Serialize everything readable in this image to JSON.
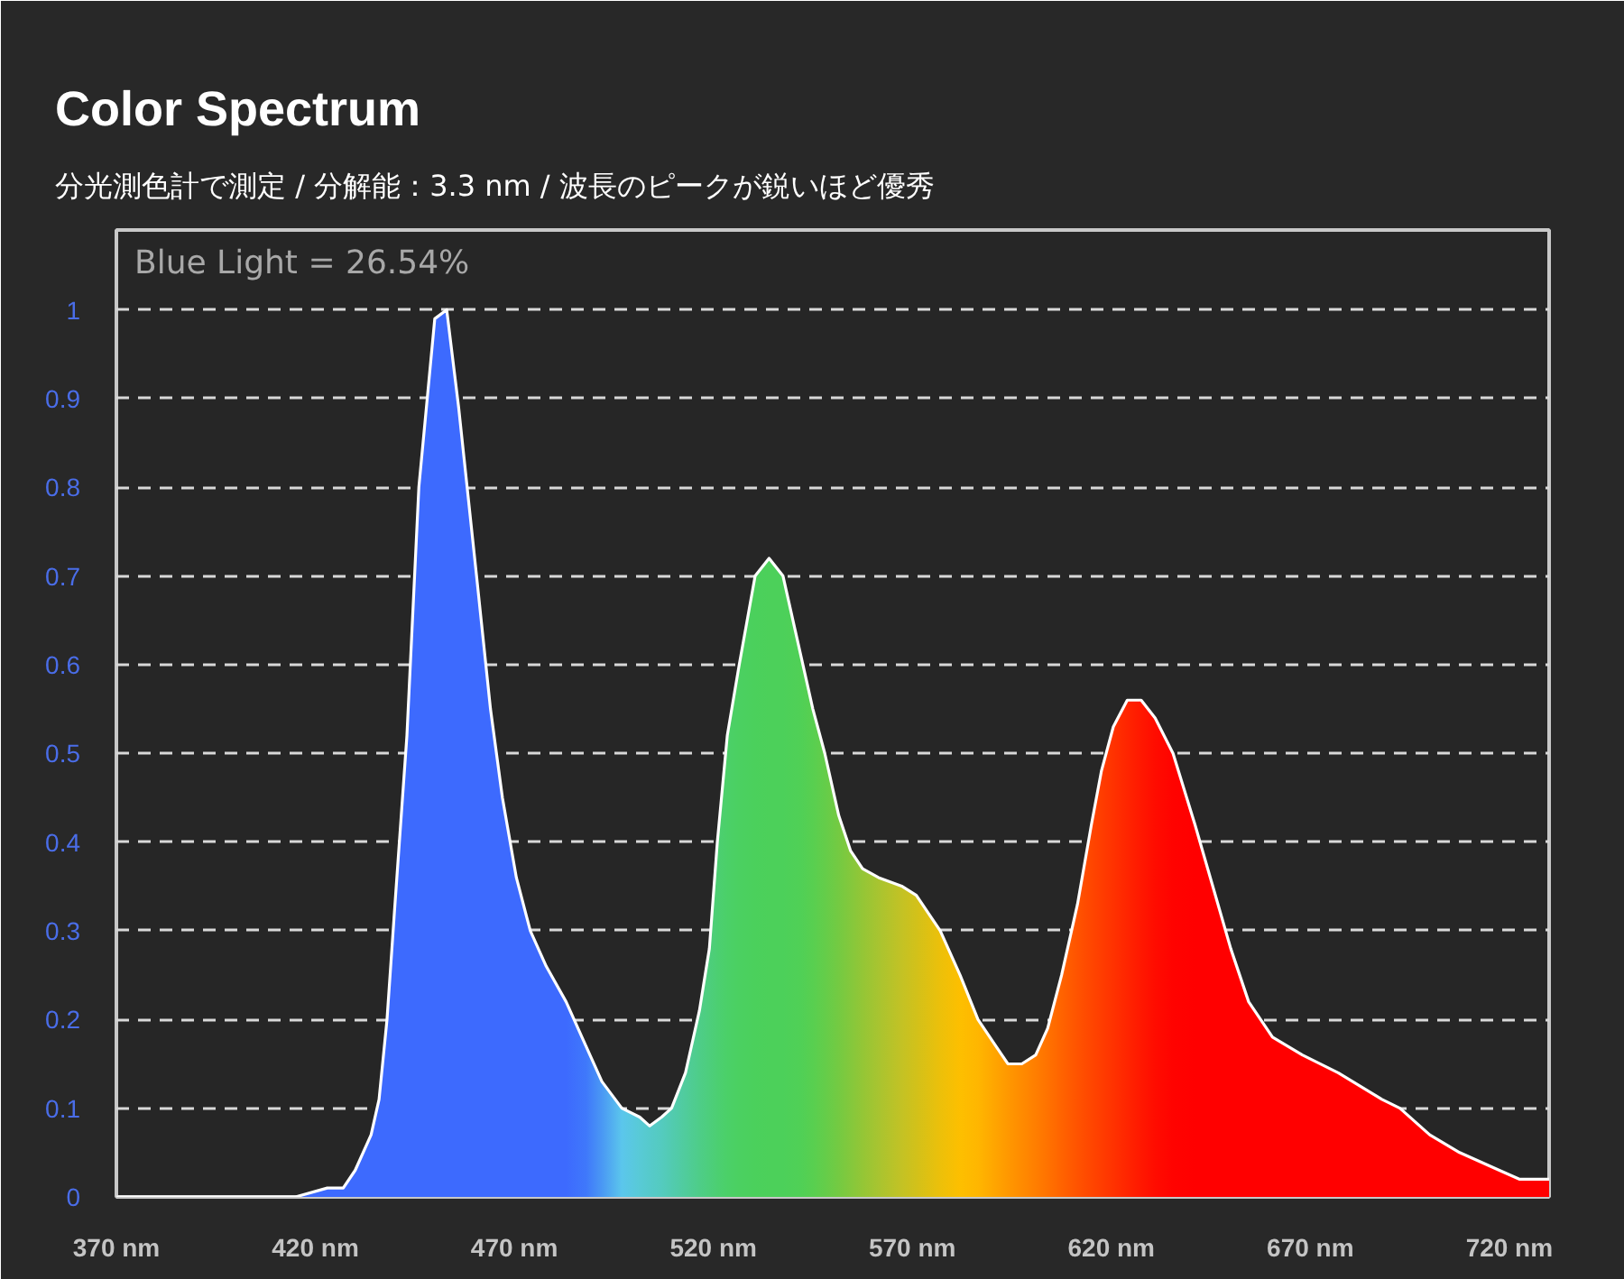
{
  "chart_data": {
    "type": "area",
    "title": "Color Spectrum",
    "subtitle": "分光測色計で測定 / 分解能：3.3 nm / 波長のピークが鋭いほど優秀",
    "annotations": [
      "Blue Light = 26.54%"
    ],
    "x": [
      370,
      400,
      415,
      423,
      427,
      430,
      434,
      436,
      438,
      440,
      443,
      446,
      450,
      453,
      456,
      460.5,
      464,
      467,
      470.5,
      474,
      478,
      483,
      488,
      492,
      497,
      501.5,
      504,
      507,
      509.5,
      513,
      516.5,
      519,
      521,
      523.5,
      526.5,
      530.5,
      534,
      537.5,
      542,
      545,
      548,
      551.5,
      554.5,
      557.5,
      561.5,
      567.5,
      571,
      577,
      582,
      586.5,
      591,
      594,
      597.5,
      601,
      604,
      607.5,
      611.5,
      615,
      617.5,
      620.5,
      624,
      627.5,
      631,
      635.5,
      641,
      645.5,
      650,
      654.5,
      660.5,
      668,
      677,
      688,
      692.5,
      700,
      707.5,
      717.5,
      722.5,
      730
    ],
    "series": [
      {
        "color": "#ffffff",
        "values": [
          0,
          0,
          0,
          0.01,
          0.01,
          0.03,
          0.07,
          0.11,
          0.2,
          0.33,
          0.52,
          0.8,
          0.99,
          1.0,
          0.89,
          0.7,
          0.55,
          0.45,
          0.36,
          0.3,
          0.26,
          0.22,
          0.17,
          0.13,
          0.1,
          0.09,
          0.08,
          0.09,
          0.1,
          0.14,
          0.21,
          0.28,
          0.4,
          0.52,
          0.6,
          0.7,
          0.72,
          0.7,
          0.61,
          0.55,
          0.5,
          0.43,
          0.39,
          0.37,
          0.36,
          0.35,
          0.34,
          0.3,
          0.25,
          0.2,
          0.17,
          0.15,
          0.15,
          0.16,
          0.19,
          0.25,
          0.33,
          0.42,
          0.48,
          0.53,
          0.56,
          0.56,
          0.54,
          0.5,
          0.42,
          0.35,
          0.28,
          0.22,
          0.18,
          0.16,
          0.14,
          0.11,
          0.1,
          0.07,
          0.05,
          0.03,
          0.02,
          0.02
        ],
        "colors": [
          "#3d6afe",
          "#3d6afe",
          "#3d6afe",
          "#3d6afe",
          "#3d6afe",
          "#3d6afe",
          "#3d6afe",
          "#3d6afe",
          "#3d6afe",
          "#3d6afe",
          "#3d6afe",
          "#3d6afe",
          "#3d6afe",
          "#3d6afe",
          "#3d6afe",
          "#3d6afe",
          "#3d6afe",
          "#3d6afe",
          "#3d6afe",
          "#3d6afe",
          "#3d6afe",
          "#3d6afe",
          "#3f78fb",
          "#4a98f4",
          "#5bc6ec",
          "#58cad6",
          "#56cacb",
          "#54cbbf",
          "#52cbb0",
          "#50cc9c",
          "#4ecd88",
          "#4dce7c",
          "#4ccf72",
          "#4bd068",
          "#4bd061",
          "#4bd05c",
          "#4cd05a",
          "#4cd05a",
          "#50d056",
          "#58cf50",
          "#64cd4a",
          "#74ca42",
          "#84c83c",
          "#94c636",
          "#a8c430",
          "#c4c224",
          "#d2c11a",
          "#ecc00a",
          "#fdbf00",
          "#ffb600",
          "#ffa400",
          "#ff9800",
          "#ff8b00",
          "#ff7e00",
          "#ff7200",
          "#ff6300",
          "#ff5300",
          "#ff4600",
          "#ff3d00",
          "#ff3200",
          "#ff2500",
          "#ff1800",
          "#ff0c00",
          "#ff0300",
          "#ff0000",
          "#ff0000",
          "#ff0000",
          "#ff0000",
          "#ff0000",
          "#ff0000",
          "#ff0000",
          "#ff0000",
          "#ff0000",
          "#ff0000",
          "#ff0000",
          "#ff0000",
          "#ff0000",
          "#ff0000"
        ]
      }
    ],
    "xlim": [
      370,
      730
    ],
    "ylim": [
      0,
      1.09
    ],
    "xticks": [
      {
        "value": 370,
        "label": "370 nm"
      },
      {
        "value": 420,
        "label": "420 nm"
      },
      {
        "value": 470,
        "label": "470 nm"
      },
      {
        "value": 520,
        "label": "520 nm"
      },
      {
        "value": 570,
        "label": "570 nm"
      },
      {
        "value": 620,
        "label": "620 nm"
      },
      {
        "value": 670,
        "label": "670 nm"
      },
      {
        "value": 720,
        "label": "720 nm"
      }
    ],
    "yticks": [
      0,
      0.1,
      0.2,
      0.3,
      0.4,
      0.5,
      0.6,
      0.7,
      0.8,
      0.9,
      1
    ],
    "grid": "y"
  }
}
